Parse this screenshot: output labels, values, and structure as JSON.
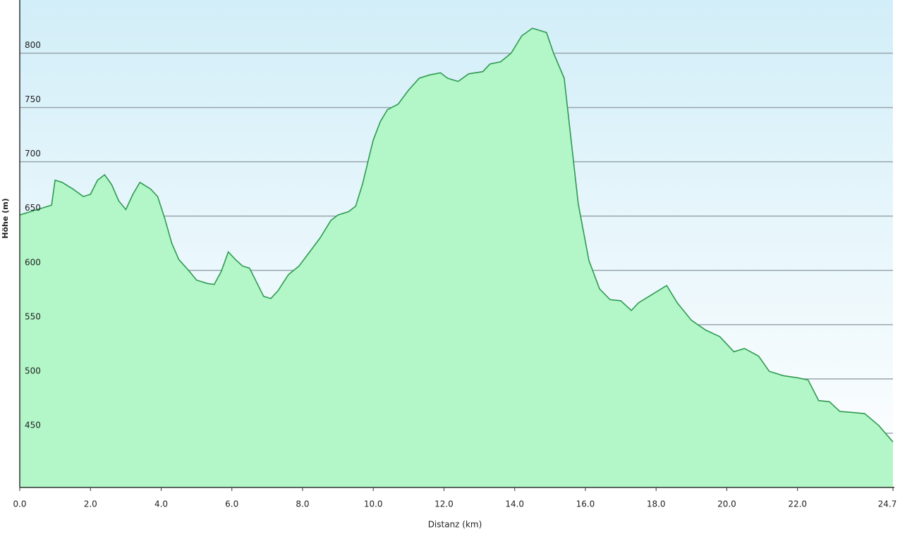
{
  "chart_data": {
    "type": "area",
    "x_label": "Distanz  (km)",
    "y_label": "Höhe (m)",
    "x": [
      0,
      0.3,
      0.6,
      0.9,
      1.0,
      1.2,
      1.5,
      1.8,
      2.0,
      2.2,
      2.4,
      2.6,
      2.8,
      3.0,
      3.2,
      3.4,
      3.7,
      3.9,
      4.1,
      4.3,
      4.5,
      4.8,
      5.0,
      5.3,
      5.5,
      5.7,
      5.9,
      6.1,
      6.3,
      6.5,
      6.7,
      6.9,
      7.1,
      7.3,
      7.6,
      7.9,
      8.2,
      8.5,
      8.8,
      9.0,
      9.3,
      9.5,
      9.7,
      9.9,
      10.0,
      10.2,
      10.4,
      10.7,
      11.0,
      11.3,
      11.6,
      11.9,
      12.1,
      12.4,
      12.7,
      13.1,
      13.3,
      13.6,
      13.9,
      14.2,
      14.5,
      14.9,
      15.1,
      15.4,
      15.6,
      15.8,
      16.1,
      16.4,
      16.7,
      17.0,
      17.3,
      17.5,
      17.8,
      18.0,
      18.3,
      18.6,
      19.0,
      19.4,
      19.8,
      20.2,
      20.5,
      20.9,
      21.2,
      21.6,
      22.0,
      22.3,
      22.6,
      22.9,
      23.2,
      23.6,
      23.9,
      24.3,
      24.7
    ],
    "series": [
      {
        "color": "#2e9a50",
        "fill": "#b3f7c9",
        "values": [
          651,
          654,
          657,
          660,
          683,
          681,
          675,
          668,
          670,
          683,
          688,
          679,
          664,
          656,
          670,
          681,
          675,
          668,
          648,
          625,
          610,
          599,
          591,
          588,
          587,
          599,
          617,
          610,
          604,
          602,
          589,
          576,
          574,
          581,
          596,
          604,
          617,
          630,
          646,
          651,
          654,
          659,
          680,
          707,
          720,
          737,
          748,
          753,
          766,
          777,
          780,
          782,
          777,
          774,
          781,
          783,
          790,
          792,
          800,
          816,
          823,
          819,
          800,
          777,
          719,
          661,
          609,
          583,
          573,
          572,
          563,
          570,
          576,
          580,
          586,
          570,
          554,
          545,
          539,
          525,
          528,
          521,
          507,
          503,
          501,
          499,
          480,
          479,
          470,
          469,
          468,
          457,
          442
        ]
      }
    ],
    "xlim": [
      0,
      24.7
    ],
    "xticks": [
      {
        "value": 0,
        "label": "0.0"
      },
      {
        "value": 2,
        "label": "2.0"
      },
      {
        "value": 4,
        "label": "4.0"
      },
      {
        "value": 6,
        "label": "6.0"
      },
      {
        "value": 8,
        "label": "8.0"
      },
      {
        "value": 10,
        "label": "10.0"
      },
      {
        "value": 12,
        "label": "12.0"
      },
      {
        "value": 14,
        "label": "14.0"
      },
      {
        "value": 16,
        "label": "16.0"
      },
      {
        "value": 18,
        "label": "18.0"
      },
      {
        "value": 20,
        "label": "20.0"
      },
      {
        "value": 22,
        "label": "22.0"
      },
      {
        "value": 24.7,
        "label": "24.7"
      }
    ],
    "ylim": [
      400,
      849
    ],
    "yticks": [
      450,
      500,
      550,
      600,
      650,
      700,
      750,
      800
    ],
    "grid": true
  }
}
